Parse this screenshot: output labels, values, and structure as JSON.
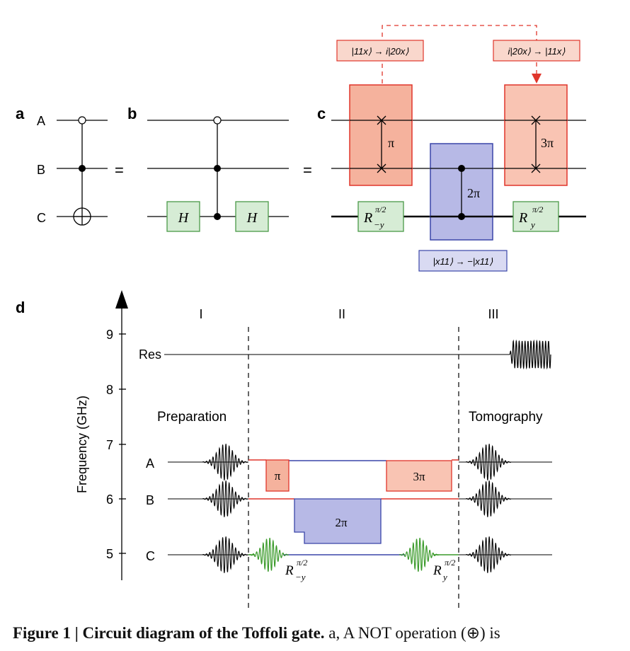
{
  "panel_labels": {
    "a": "a",
    "b": "b",
    "c": "c",
    "d": "d"
  },
  "qubits": {
    "A": "A",
    "B": "B",
    "C": "C"
  },
  "equals": "=",
  "gates": {
    "hadamard": "H",
    "pi": "π",
    "three_pi": "3π",
    "two_pi": "2π",
    "r_base": "R",
    "r_neg_sub": "−y",
    "r_pos_sub": "y",
    "r_sup": "π/2"
  },
  "annotations": {
    "swap_in": "|11x⟩ → i|20x⟩",
    "swap_out": "i|20x⟩ → |11x⟩",
    "phase": "|x11⟩ → −|x11⟩"
  },
  "frequency_plot": {
    "ylabel": "Frequency (GHz)",
    "yticks": [
      "9",
      "8",
      "7",
      "6",
      "5"
    ],
    "sections": [
      "I",
      "II",
      "III"
    ],
    "res_label": "Res",
    "preparation": "Preparation",
    "tomography": "Tomography"
  },
  "caption": {
    "bold": "Figure 1 | Circuit diagram of the Toffoli gate.",
    "text": " a, A NOT operation (⊕) is"
  },
  "colors": {
    "red_fill": "#f7b9a5",
    "red_stroke": "#e0352b",
    "blue_fill": "#b7b9e6",
    "blue_stroke": "#3a45a8",
    "green_fill": "#d6ecd5",
    "green_stroke": "#4a9a48",
    "pulse_green": "#3a9a2a"
  }
}
